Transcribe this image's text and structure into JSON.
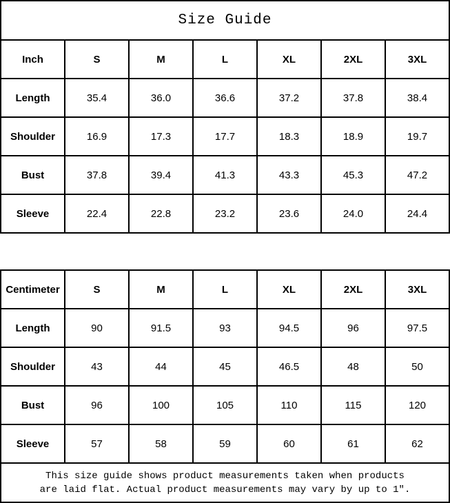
{
  "title": "Size Guide",
  "chart_data": [
    {
      "type": "table",
      "unit_label": "Inch",
      "sizes": [
        "S",
        "M",
        "L",
        "XL",
        "2XL",
        "3XL"
      ],
      "rows": [
        {
          "label": "Length",
          "values": [
            "35.4",
            "36.0",
            "36.6",
            "37.2",
            "37.8",
            "38.4"
          ]
        },
        {
          "label": "Shoulder",
          "values": [
            "16.9",
            "17.3",
            "17.7",
            "18.3",
            "18.9",
            "19.7"
          ]
        },
        {
          "label": "Bust",
          "values": [
            "37.8",
            "39.4",
            "41.3",
            "43.3",
            "45.3",
            "47.2"
          ]
        },
        {
          "label": "Sleeve",
          "values": [
            "22.4",
            "22.8",
            "23.2",
            "23.6",
            "24.0",
            "24.4"
          ]
        }
      ]
    },
    {
      "type": "table",
      "unit_label": "Centimeter",
      "sizes": [
        "S",
        "M",
        "L",
        "XL",
        "2XL",
        "3XL"
      ],
      "rows": [
        {
          "label": "Length",
          "values": [
            "90",
            "91.5",
            "93",
            "94.5",
            "96",
            "97.5"
          ]
        },
        {
          "label": "Shoulder",
          "values": [
            "43",
            "44",
            "45",
            "46.5",
            "48",
            "50"
          ]
        },
        {
          "label": "Bust",
          "values": [
            "96",
            "100",
            "105",
            "110",
            "115",
            "120"
          ]
        },
        {
          "label": "Sleeve",
          "values": [
            "57",
            "58",
            "59",
            "60",
            "61",
            "62"
          ]
        }
      ]
    }
  ],
  "footer": {
    "line1": "This size guide shows product measurements taken when products",
    "line2": "are laid flat. Actual product measurements may vary by up to 1″."
  }
}
